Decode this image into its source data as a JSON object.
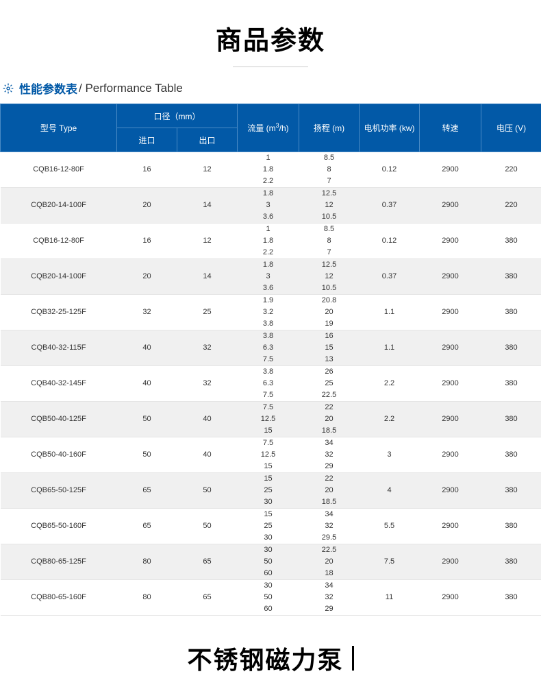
{
  "title_main": "商品参数",
  "section": {
    "cn": "性能参数表",
    "en": " / Performance Table"
  },
  "bottom_title": "不锈钢磁力泵",
  "theme": {
    "accent": "#0259a7",
    "header_border": "#4a8bc5",
    "text": "#333333",
    "stripe_even": "#f0f0f0",
    "stripe_odd": "#ffffff",
    "row_border": "#e5e5e5"
  },
  "table": {
    "columns": {
      "type": "型号 Type",
      "diameter": "口径（mm）",
      "inlet": "进口",
      "outlet": "出口",
      "flow": "流量 (m³/h)",
      "head": "扬程 (m)",
      "power": "电机功率 (kw)",
      "rpm": "转速",
      "voltage": "电压 (V)"
    },
    "col_widths": {
      "type": 170,
      "inlet": 88,
      "outlet": 88,
      "flow": 90,
      "head": 88,
      "power": 88,
      "rpm": 90,
      "voltage": 88
    },
    "rows": [
      {
        "type": "CQB16-12-80F",
        "inlet": "16",
        "outlet": "12",
        "flow": [
          "1",
          "1.8",
          "2.2"
        ],
        "head": [
          "8.5",
          "8",
          "7"
        ],
        "power": "0.12",
        "rpm": "2900",
        "voltage": "220"
      },
      {
        "type": "CQB20-14-100F",
        "inlet": "20",
        "outlet": "14",
        "flow": [
          "1.8",
          "3",
          "3.6"
        ],
        "head": [
          "12.5",
          "12",
          "10.5"
        ],
        "power": "0.37",
        "rpm": "2900",
        "voltage": "220"
      },
      {
        "type": "CQB16-12-80F",
        "inlet": "16",
        "outlet": "12",
        "flow": [
          "1",
          "1.8",
          "2.2"
        ],
        "head": [
          "8.5",
          "8",
          "7"
        ],
        "power": "0.12",
        "rpm": "2900",
        "voltage": "380"
      },
      {
        "type": "CQB20-14-100F",
        "inlet": "20",
        "outlet": "14",
        "flow": [
          "1.8",
          "3",
          "3.6"
        ],
        "head": [
          "12.5",
          "12",
          "10.5"
        ],
        "power": "0.37",
        "rpm": "2900",
        "voltage": "380"
      },
      {
        "type": "CQB32-25-125F",
        "inlet": "32",
        "outlet": "25",
        "flow": [
          "1.9",
          "3.2",
          "3.8"
        ],
        "head": [
          "20.8",
          "20",
          "19"
        ],
        "power": "1.1",
        "rpm": "2900",
        "voltage": "380"
      },
      {
        "type": "CQB40-32-115F",
        "inlet": "40",
        "outlet": "32",
        "flow": [
          "3.8",
          "6.3",
          "7.5"
        ],
        "head": [
          "16",
          "15",
          "13"
        ],
        "power": "1.1",
        "rpm": "2900",
        "voltage": "380"
      },
      {
        "type": "CQB40-32-145F",
        "inlet": "40",
        "outlet": "32",
        "flow": [
          "3.8",
          "6.3",
          "7.5"
        ],
        "head": [
          "26",
          "25",
          "22.5"
        ],
        "power": "2.2",
        "rpm": "2900",
        "voltage": "380"
      },
      {
        "type": "CQB50-40-125F",
        "inlet": "50",
        "outlet": "40",
        "flow": [
          "7.5",
          "12.5",
          "15"
        ],
        "head": [
          "22",
          "20",
          "18.5"
        ],
        "power": "2.2",
        "rpm": "2900",
        "voltage": "380"
      },
      {
        "type": "CQB50-40-160F",
        "inlet": "50",
        "outlet": "40",
        "flow": [
          "7.5",
          "12.5",
          "15"
        ],
        "head": [
          "34",
          "32",
          "29"
        ],
        "power": "3",
        "rpm": "2900",
        "voltage": "380"
      },
      {
        "type": "CQB65-50-125F",
        "inlet": "65",
        "outlet": "50",
        "flow": [
          "15",
          "25",
          "30"
        ],
        "head": [
          "22",
          "20",
          "18.5"
        ],
        "power": "4",
        "rpm": "2900",
        "voltage": "380"
      },
      {
        "type": "CQB65-50-160F",
        "inlet": "65",
        "outlet": "50",
        "flow": [
          "15",
          "25",
          "30"
        ],
        "head": [
          "34",
          "32",
          "29.5"
        ],
        "power": "5.5",
        "rpm": "2900",
        "voltage": "380"
      },
      {
        "type": "CQB80-65-125F",
        "inlet": "80",
        "outlet": "65",
        "flow": [
          "30",
          "50",
          "60"
        ],
        "head": [
          "22.5",
          "20",
          "18"
        ],
        "power": "7.5",
        "rpm": "2900",
        "voltage": "380"
      },
      {
        "type": "CQB80-65-160F",
        "inlet": "80",
        "outlet": "65",
        "flow": [
          "30",
          "50",
          "60"
        ],
        "head": [
          "34",
          "32",
          "29"
        ],
        "power": "11",
        "rpm": "2900",
        "voltage": "380"
      }
    ]
  }
}
